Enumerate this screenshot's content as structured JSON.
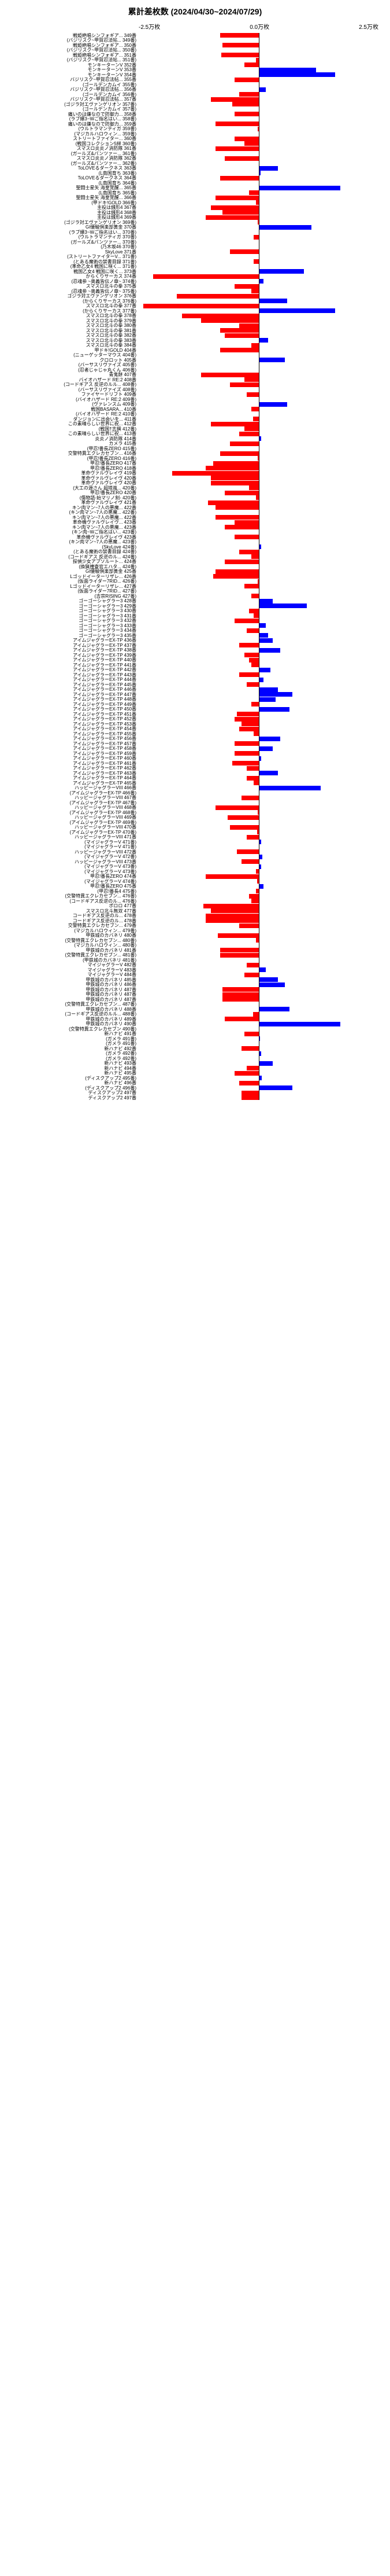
{
  "title": "累計差枚数 (2024/04/30~2024/07/29)",
  "axis": {
    "min": -25000,
    "max": 25000,
    "labels": [
      "-2.5万枚",
      "0.0万枚",
      "2.5万枚"
    ]
  },
  "colors": {
    "negative": "#ff0000",
    "positive": "#0000ff",
    "centerline": "#000000"
  },
  "rows": [
    {
      "label": "戦姫絶唱シンフォギア... 349番",
      "value": -8000
    },
    {
      "label": "(バジリスク~甲賀忍法帖... 349番)",
      "value": 0
    },
    {
      "label": "戦姫絶唱シンフォギア... 350番",
      "value": -7500
    },
    {
      "label": "(バジリスク~甲賀忍法帖... 350番)",
      "value": 0
    },
    {
      "label": "戦姫絶唱シンフォギア... 351番",
      "value": -7800
    },
    {
      "label": "(バジリスク~甲賀忍法帖... 351番)",
      "value": -500
    },
    {
      "label": "モンキーターンV 352番",
      "value": -3000
    },
    {
      "label": "モンキーターンV 353番",
      "value": 12000
    },
    {
      "label": "モンキーターンV 354番",
      "value": 16000
    },
    {
      "label": "バジリスク~甲賀忍法帖... 355番",
      "value": -5000
    },
    {
      "label": "(ゴールデンカムイ 355番)",
      "value": 200
    },
    {
      "label": "バジリスク~甲賀忍法帖... 356番",
      "value": 1500
    },
    {
      "label": "(ゴールデンカムイ 356番)",
      "value": -4000
    },
    {
      "label": "バジリスク~甲賀忍法帖... 357番",
      "value": -10000
    },
    {
      "label": "(ゴジラ対エヴァンゲリオン 357番)",
      "value": -5500
    },
    {
      "label": "(ゴールデンカムイ 357番)",
      "value": 0
    },
    {
      "label": "痛いのは嫌なので防御力... 358番",
      "value": -5000
    },
    {
      "label": "(ラブ嬢3~Wご指名はい... 358番)",
      "value": 0
    },
    {
      "label": "痛いのは嫌なので防御力... 359番",
      "value": -9000
    },
    {
      "label": "(ウルトラマンティガ 359番)",
      "value": -200
    },
    {
      "label": "(マジカルハロウィン... 359番)",
      "value": 200
    },
    {
      "label": "ストリートファイター... 360番",
      "value": -5000
    },
    {
      "label": "(戦国コレクション5絆 360番)",
      "value": -3000
    },
    {
      "label": "スマスロ炎炎ノ消防隊 361番",
      "value": -9000
    },
    {
      "label": "(ガールズ&パンツァー... 361番)",
      "value": 0
    },
    {
      "label": "スマスロ炎炎ノ消防隊 362番",
      "value": -7000
    },
    {
      "label": "(ガールズ&パンツァー... 362番)",
      "value": 0
    },
    {
      "label": "ToLOVEるダークネス 363番",
      "value": 4000
    },
    {
      "label": "(L南国育ち 363番)",
      "value": 400
    },
    {
      "label": "ToLOVEるダークネス 364番",
      "value": -8000
    },
    {
      "label": "(L南国育ち 364番)",
      "value": 200
    },
    {
      "label": "聖闘士星矢 海皇覚醒... 365番",
      "value": 17000
    },
    {
      "label": "(L南国育ち 365番)",
      "value": -2000
    },
    {
      "label": "聖闘士星矢 海皇覚醒... 366番",
      "value": -9000
    },
    {
      "label": "(甲ドキ!GOLD 366番)",
      "value": -500
    },
    {
      "label": "主役は銭形4 367番",
      "value": -10000
    },
    {
      "label": "主役は銭形4 368番",
      "value": -7500
    },
    {
      "label": "主役は銭形4 369番",
      "value": -11000
    },
    {
      "label": "(ゴジラ対エヴァンゲリオン 369番)",
      "value": -200
    },
    {
      "label": "GI優駿倶楽部黄金 370番",
      "value": 11000
    },
    {
      "label": "(ラブ嬢3~Wご指名はい... 370番)",
      "value": 0
    },
    {
      "label": "(ウルトラマンティガ 370番)",
      "value": -1000
    },
    {
      "label": "(ガールズ&パンツァー... 370番)",
      "value": 0
    },
    {
      "label": "(乃木坂46 370番)",
      "value": 0
    },
    {
      "label": "SkyLove 371番",
      "value": -6000
    },
    {
      "label": "(ストリートファイターV... 371番)",
      "value": 0
    },
    {
      "label": "(とある魔術の禁書目録 371番)",
      "value": -1000
    },
    {
      "label": "(革命乙女4 戦国に咲く... 371番)",
      "value": 0
    },
    {
      "label": "戦国乙女4 戦国に咲く... 373番",
      "value": 9500
    },
    {
      "label": "からくりサーカス 374番",
      "value": -22000
    },
    {
      "label": "(忍魂参 ~奥義皆伝ノ章~ 374番)",
      "value": 1000
    },
    {
      "label": "スマスロ北斗の拳 375番",
      "value": -5000
    },
    {
      "label": "(忍魂参 ~奥義皆伝ノ章~ 375番)",
      "value": -1500
    },
    {
      "label": "ゴジラ対エヴァンゲリオン 376番",
      "value": -17000
    },
    {
      "label": "(からくりサーカス 376番)",
      "value": 6000
    },
    {
      "label": "スマスロ北斗の拳 377番",
      "value": -24000
    },
    {
      "label": "(からくりサーカス 377番)",
      "value": 16000
    },
    {
      "label": "スマスロ北斗の拳 378番",
      "value": -16000
    },
    {
      "label": "スマスロ北斗の拳 379番",
      "value": -12000
    },
    {
      "label": "スマスロ北斗の拳 380番",
      "value": -4000
    },
    {
      "label": "スマスロ北斗の拳 381番",
      "value": -8000
    },
    {
      "label": "スマスロ北斗の拳 382番",
      "value": -7000
    },
    {
      "label": "スマスロ北斗の拳 383番",
      "value": 2000
    },
    {
      "label": "スマスロ北斗の拳 384番",
      "value": -1500
    },
    {
      "label": "甲ドキ!GOLD 404番",
      "value": -8000
    },
    {
      "label": "(ニューゲッターマウス 404番)",
      "value": 0
    },
    {
      "label": "クロロット 405番",
      "value": 5500
    },
    {
      "label": "(バーサスリヴァイズ 405番)",
      "value": 0
    },
    {
      "label": "(忍者じゃじゃ丸くん 406番)",
      "value": 0
    },
    {
      "label": "青鬼餅 407番",
      "value": -12000
    },
    {
      "label": "バイオハザード RE:2 408番",
      "value": -3000
    },
    {
      "label": "(コードギアス 反逆のルル... 408番)",
      "value": -6000
    },
    {
      "label": "(バーサスリヴァイズ 408番)",
      "value": 0
    },
    {
      "label": "ファイヤードリフト 409番",
      "value": -2500
    },
    {
      "label": "(バイオハザード RE:2 409番)",
      "value": 0
    },
    {
      "label": "(ヴァレンスム 409番)",
      "value": 6000
    },
    {
      "label": "戦国BASARA... 410番",
      "value": -1500
    },
    {
      "label": "(バイオハザード RE:2 410番)",
      "value": 0
    },
    {
      "label": "ダンジョンに出会いを... 411番",
      "value": -1200
    },
    {
      "label": "この素晴らしい世界に祝... 412番",
      "value": -10000
    },
    {
      "label": "(戦国†志撰 412番)",
      "value": -3000
    },
    {
      "label": "この素晴らしい世界に祝... 413番",
      "value": -4000
    },
    {
      "label": "炎炎ノ消防隊 414番",
      "value": 500
    },
    {
      "label": "カメラ 415番",
      "value": -6000
    },
    {
      "label": "(甲忍!番長ZERO 415番)",
      "value": 0
    },
    {
      "label": "交警特異エクレカセブン... 416番",
      "value": -8000
    },
    {
      "label": "(甲忍!番長ZERO 416番)",
      "value": -200
    },
    {
      "label": "甲忍!番長ZERO 417番",
      "value": -9500
    },
    {
      "label": "甲忍!番長ZERO 418番",
      "value": -11000
    },
    {
      "label": "革命ヴァルヴレイヴ 419番",
      "value": -18000
    },
    {
      "label": "革命ヴァルヴレイヴ 420番",
      "value": -10000
    },
    {
      "label": "革命ヴァルヴレイヴ 420番",
      "value": -10000
    },
    {
      "label": "(大工の源さん 超塔嵐... 420番)",
      "value": -2000
    },
    {
      "label": "甲忍!番長ZERO 420番",
      "value": -7000
    },
    {
      "label": "(傷物語-始マリノ刻- 420番)",
      "value": -500
    },
    {
      "label": "革命ヴァルヴレイヴ 421番",
      "value": -10500
    },
    {
      "label": "キン肉マン~7人の悪魔... 422番",
      "value": -9000
    },
    {
      "label": "(キン肉マン~7人の悪魔... 422番)",
      "value": 0
    },
    {
      "label": "キン肉マン~7人の悪魔... 422番",
      "value": -9000
    },
    {
      "label": "革命機ヴァルヴレイヴ... 423番",
      "value": -5000
    },
    {
      "label": "キン肉マン~7人の悪魔... 423番",
      "value": -7000
    },
    {
      "label": "(キン肉~Wご指名はい... 423番)",
      "value": 0
    },
    {
      "label": "革命機ヴァルヴレイヴ 423番",
      "value": -5000
    },
    {
      "label": "(キン肉マン~7人の悪魔... 423番)",
      "value": 0
    },
    {
      "label": "(SkyLove 424番)",
      "value": 500
    },
    {
      "label": "(とある魔術の禁書目録 424番)",
      "value": -4000
    },
    {
      "label": "(コードギアス 反逆のル... 424番)",
      "value": -1500
    },
    {
      "label": "探偵少女アプソルート... 424番",
      "value": -7000
    },
    {
      "label": "(換猟捜査官エハタ... 424番)",
      "value": 0
    },
    {
      "label": "GI優駿倶楽部黄金 425番",
      "value": -9000
    },
    {
      "label": "Lゴッドイーターリザレ... 426番",
      "value": -9500
    },
    {
      "label": "(仮面ライダー7RID... 426番)",
      "value": -200
    },
    {
      "label": "Lゴッドイーターリザレ... 427番",
      "value": -3000
    },
    {
      "label": "(仮面ライダー7RID... 427番)",
      "value": 0
    },
    {
      "label": "(吉宗RISING 427番)",
      "value": -1500
    },
    {
      "label": "ゴーゴーシャグラー3 428番",
      "value": 3000
    },
    {
      "label": "ゴーゴーシャグラー3 429番",
      "value": 10000
    },
    {
      "label": "ゴーゴーシャグラー3 430番",
      "value": -2000
    },
    {
      "label": "ゴーゴーシャグラー3 431番",
      "value": -1000
    },
    {
      "label": "ゴーゴーシャグラー3 432番",
      "value": -5000
    },
    {
      "label": "ゴーゴーシャグラー3 433番",
      "value": 1500
    },
    {
      "label": "ゴーゴーシャグラー3 434番",
      "value": -2500
    },
    {
      "label": "ゴーゴーシャグラー3 435番",
      "value": 2000
    },
    {
      "label": "アイムジャグラーEX-TP 436番",
      "value": 3000
    },
    {
      "label": "アイムジャグラーEX-TP 437番",
      "value": -4000
    },
    {
      "label": "アイムジャグラーEX-TP 438番",
      "value": 4500
    },
    {
      "label": "アイムジャグラーEX-TP 439番",
      "value": -3000
    },
    {
      "label": "アイムジャグラーEX-TP 440番",
      "value": -2000
    },
    {
      "label": "アイムジャグラーEX-TP 441番",
      "value": -1500
    },
    {
      "label": "アイムジャグラーEX-TP 442番",
      "value": 2500
    },
    {
      "label": "アイムジャグラーEX-TP 443番",
      "value": -4000
    },
    {
      "label": "アイムジャグラーEX-TP 444番",
      "value": 1000
    },
    {
      "label": "アイムジャグラーEX-TP 445番",
      "value": -2500
    },
    {
      "label": "アイムジャグラーEX-TP 446番",
      "value": 4000
    },
    {
      "label": "アイムジャグラーEX-TP 447番",
      "value": 7000
    },
    {
      "label": "アイムジャグラーEX-TP 448番",
      "value": 3500
    },
    {
      "label": "アイムジャグラーEX-TP 449番",
      "value": -1500
    },
    {
      "label": "アイムジャグラーEX-TP 450番",
      "value": 6500
    },
    {
      "label": "アイムジャグラーEX-TP 451番",
      "value": -4500
    },
    {
      "label": "アイムジャグラーEX-TP 452番",
      "value": -5000
    },
    {
      "label": "アイムジャグラーEX-TP 453番",
      "value": -3500
    },
    {
      "label": "アイムジャグラーEX-TP 454番",
      "value": -4000
    },
    {
      "label": "アイムジャグラーEX-TP 455番",
      "value": -1000
    },
    {
      "label": "アイムジャグラーEX-TP 456番",
      "value": 4500
    },
    {
      "label": "アイムジャグラーEX-TP 457番",
      "value": -5000
    },
    {
      "label": "アイムジャグラーEX-TP 458番",
      "value": 3000
    },
    {
      "label": "アイムジャグラーEX-TP 459番",
      "value": -5000
    },
    {
      "label": "アイムジャグラーEX-TP 460番",
      "value": 500
    },
    {
      "label": "アイムジャグラーEX-TP 461番",
      "value": -5500
    },
    {
      "label": "アイムジャグラーEX-TP 462番",
      "value": -2500
    },
    {
      "label": "アイムジャグラーEX-TP 463番",
      "value": 4000
    },
    {
      "label": "アイムジャグラーEX-TP 464番",
      "value": -2500
    },
    {
      "label": "アイムジャグラーEX-TP 465番",
      "value": -1000
    },
    {
      "label": "ハッピージャグラーVIII 466番",
      "value": 13000
    },
    {
      "label": "(アイムジャグラーEX-TP 466番)",
      "value": 0
    },
    {
      "label": "ハッピージャグラーVIII 467番",
      "value": -3500
    },
    {
      "label": "(アイムジャグラーEX-TP 467番)",
      "value": 0
    },
    {
      "label": "ハッピージャグラーVIII 468番",
      "value": -9000
    },
    {
      "label": "(アイムジャグラーEX-TP 468番)",
      "value": -200
    },
    {
      "label": "ハッピージャグラーVIII 469番",
      "value": -6500
    },
    {
      "label": "(アイムジャグラーEX-TP 469番)",
      "value": 0
    },
    {
      "label": "ハッピージャグラーVIII 470番",
      "value": -6000
    },
    {
      "label": "(アイムジャグラーEX-TP 470番)",
      "value": -300
    },
    {
      "label": "ハッピージャグラーVIII 471番",
      "value": -2500
    },
    {
      "label": "(マイジャグラーV 471番)",
      "value": 500
    },
    {
      "label": "(マイジャグラーV 471番)",
      "value": 0
    },
    {
      "label": "ハッピージャグラーVIII 472番",
      "value": -4500
    },
    {
      "label": "(マイジャグラーV 472番)",
      "value": 800
    },
    {
      "label": "ハッピージャグラーVIII 473番",
      "value": -3500
    },
    {
      "label": "(マイジャグラーV 473番)",
      "value": 600
    },
    {
      "label": "(マイジャグラーV 473番)",
      "value": -500
    },
    {
      "label": "甲忍!番長ZERO 474番",
      "value": -11000
    },
    {
      "label": "(マイジャグラーV 474番)",
      "value": -300
    },
    {
      "label": "甲忍!番長ZERO 475番",
      "value": 1000
    },
    {
      "label": "(甲忍!番長4 475番)",
      "value": -500
    },
    {
      "label": "(交警特異エクレカセブン... 476番)",
      "value": -2000
    },
    {
      "label": "(コードギアス反逆のル... 476番)",
      "value": -1500
    },
    {
      "label": "ポロロ 477番",
      "value": -11500
    },
    {
      "label": "スマスロ北斗無双 477番",
      "value": -10000
    },
    {
      "label": "コードギアス反逆のル... 478番",
      "value": -11000
    },
    {
      "label": "コードギアス反逆のル... 478番",
      "value": -11000
    },
    {
      "label": "交警特異エクレカセブン... 479番",
      "value": -4000
    },
    {
      "label": "(マジカルハロウィン... 479番)",
      "value": 0
    },
    {
      "label": "甲鉄城のカバネリ 480番",
      "value": -8500
    },
    {
      "label": "(交警特異エクレカセブン... 480番)",
      "value": -500
    },
    {
      "label": "(マジカルハロウィン... 480番)",
      "value": 0
    },
    {
      "label": "甲鉄城のカバネリ 481番",
      "value": -8000
    },
    {
      "label": "(交警特異エクレカセブン... 481番)",
      "value": -8000
    },
    {
      "label": "(甲鉄城のカバネリ 481番)",
      "value": 0
    },
    {
      "label": "マイジャグラーV 482番",
      "value": -2500
    },
    {
      "label": "マイジャグラーV 483番",
      "value": 1500
    },
    {
      "label": "マイジャグラーV 484番",
      "value": -3000
    },
    {
      "label": "甲鉄城のカバネリ 485番",
      "value": 4000
    },
    {
      "label": "甲鉄城のカバネリ 486番",
      "value": 5500
    },
    {
      "label": "甲鉄城のカバネリ 487番",
      "value": -7500
    },
    {
      "label": "甲鉄城のカバネリ 487番",
      "value": -7500
    },
    {
      "label": "甲鉄城のカバネリ 487番",
      "value": -7500
    },
    {
      "label": "(交警特異エクレカセブン... 487番)",
      "value": 0
    },
    {
      "label": "甲鉄城のカバネリ 488番",
      "value": 6500
    },
    {
      "label": "(コードギアス反逆のルル... 488番)",
      "value": -1200
    },
    {
      "label": "甲鉄城のカバネリ 489番",
      "value": -7000
    },
    {
      "label": "甲鉄城のカバネリ 490番",
      "value": 17000
    },
    {
      "label": "(交警特異エクレカセブン 490番)",
      "value": 0
    },
    {
      "label": "新ハナビ 491番",
      "value": -3000
    },
    {
      "label": "(ガメラ 491番)",
      "value": 300
    },
    {
      "label": "(ガメラ 491番)",
      "value": 0
    },
    {
      "label": "新ハナビ 492番",
      "value": -3500
    },
    {
      "label": "(ガメラ 492番)",
      "value": 500
    },
    {
      "label": "(ガメラ 492番)",
      "value": 0
    },
    {
      "label": "新ハナビ 493番",
      "value": 3000
    },
    {
      "label": "新ハナビ 494番",
      "value": -2500
    },
    {
      "label": "新ハナビ 495番",
      "value": -5000
    },
    {
      "label": "(ディスクアップ2 495番)",
      "value": 700
    },
    {
      "label": "新ハナビ 496番",
      "value": -4000
    },
    {
      "label": "(ディスクアップ2 496番)",
      "value": 7000
    },
    {
      "label": "ディスクアップ2 497番",
      "value": -3500
    },
    {
      "label": "ディスクアップ2 497番",
      "value": -3500
    }
  ]
}
